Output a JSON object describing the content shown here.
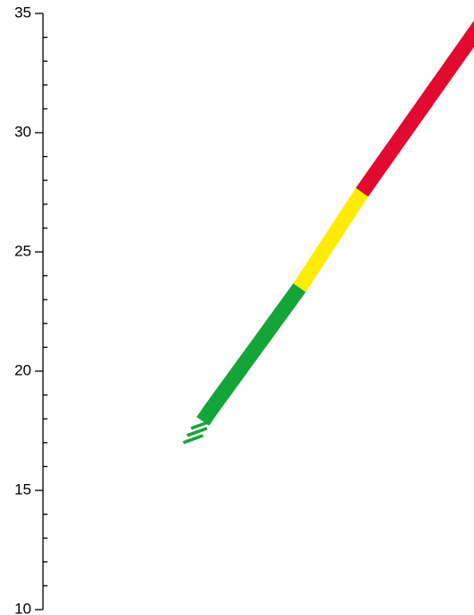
{
  "chart_data": {
    "type": "band",
    "ylim": [
      10,
      35
    ],
    "yticks": [
      10,
      15,
      20,
      25,
      30,
      35
    ],
    "minor_yticks": [
      11,
      12,
      13,
      14,
      16,
      17,
      18,
      19,
      21,
      22,
      23,
      24,
      26,
      27,
      28,
      29,
      31,
      32,
      33,
      34
    ],
    "segments": [
      {
        "style": "hatch",
        "from": 17,
        "to": 17.9,
        "color": "#13a538"
      },
      {
        "style": "solid",
        "from": 17.9,
        "to": 23.5,
        "color": "#13a538"
      },
      {
        "style": "solid",
        "from": 23.5,
        "to": 27.5,
        "color": "#ffec00"
      },
      {
        "style": "solid",
        "from": 27.5,
        "to": 35,
        "color": "#e30a2f"
      }
    ]
  }
}
